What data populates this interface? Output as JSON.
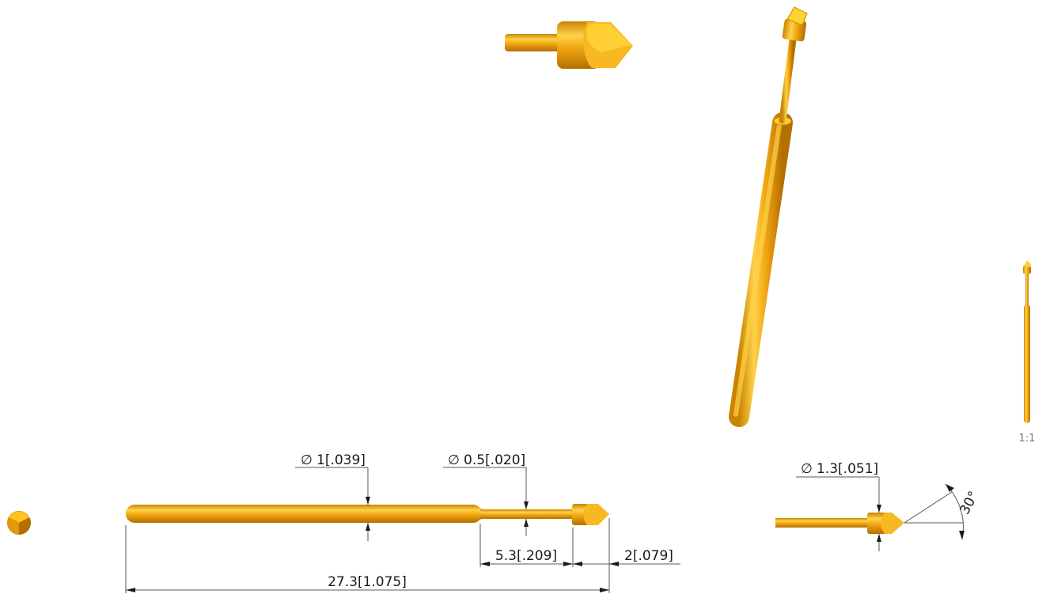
{
  "colors": {
    "gold_base": "#f2a813",
    "gold_light": "#ffd24a",
    "gold_dark": "#c98400",
    "gold_shadow": "#b36f00",
    "dimension_line": "#5a5a5a",
    "dimension_text": "#1a1a1a"
  },
  "dimensions": {
    "barrel_diameter": "1[.039]",
    "plunger_diameter": "0.5[.020]",
    "head_diameter": "1.3[.051]",
    "plunger_length": "5.3[.209]",
    "tip_length": "2[.079]",
    "overall_length": "27.3[1.075]",
    "tip_angle": "30°",
    "diameter_symbol": "∅"
  },
  "scale_label": "1:1",
  "views": [
    "end-view",
    "front-view",
    "detail-view",
    "tip-isometric-view",
    "isometric-view",
    "scale-view"
  ]
}
